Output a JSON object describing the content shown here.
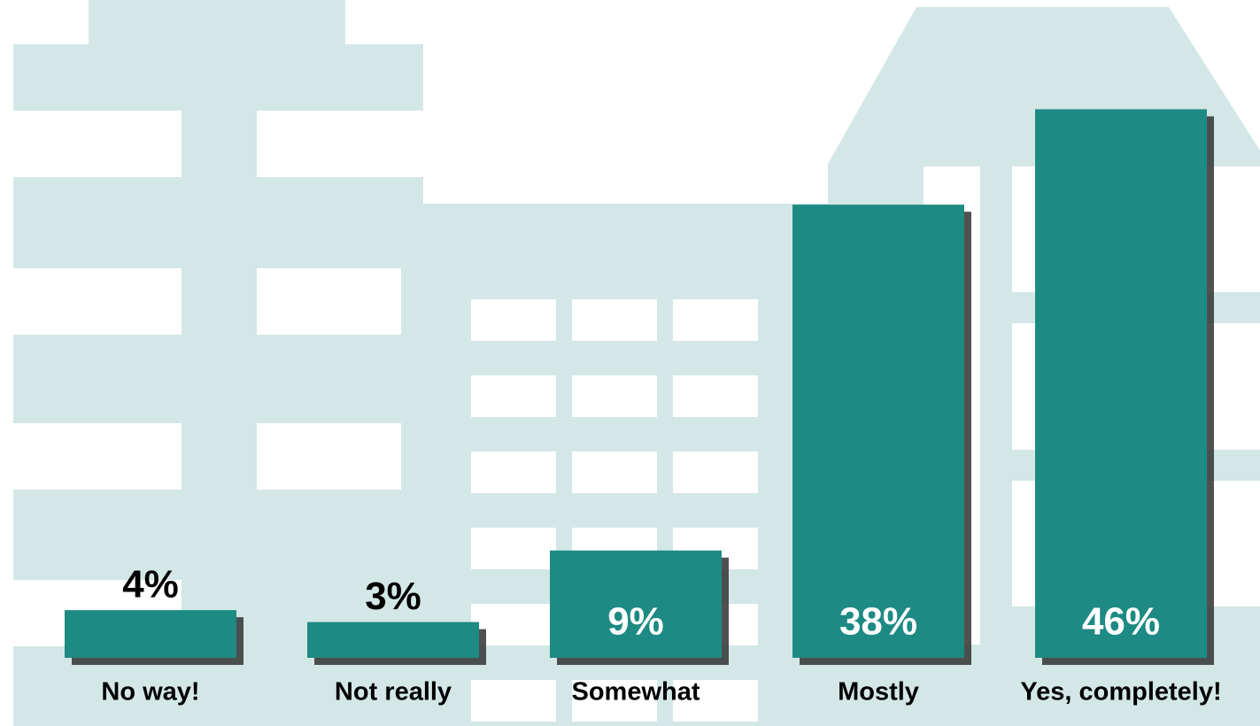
{
  "chart_data": {
    "type": "bar",
    "categories": [
      "No way!",
      "Not really",
      "Somewhat",
      "Mostly",
      "Yes, completely!"
    ],
    "values": [
      4,
      3,
      9,
      38,
      46
    ],
    "value_labels": [
      "4%",
      "3%",
      "9%",
      "38%",
      "46%"
    ],
    "color": "#1e8a84"
  }
}
